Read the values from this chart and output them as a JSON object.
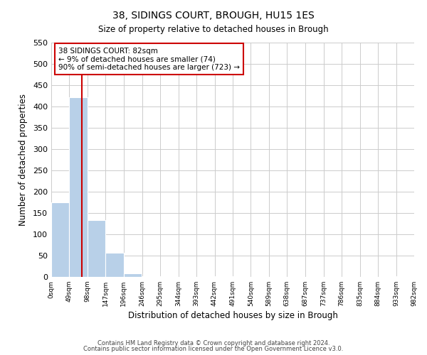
{
  "title": "38, SIDINGS COURT, BROUGH, HU15 1ES",
  "subtitle": "Size of property relative to detached houses in Brough",
  "xlabel": "Distribution of detached houses by size in Brough",
  "ylabel": "Number of detached properties",
  "bin_edges": [
    0,
    49,
    98,
    147,
    196,
    246,
    295,
    344,
    393,
    442,
    491,
    540,
    589,
    638,
    687,
    737,
    786,
    835,
    884,
    933,
    982
  ],
  "bin_labels": [
    "0sqm",
    "49sqm",
    "98sqm",
    "147sqm",
    "196sqm",
    "246sqm",
    "295sqm",
    "344sqm",
    "393sqm",
    "442sqm",
    "491sqm",
    "540sqm",
    "589sqm",
    "638sqm",
    "687sqm",
    "737sqm",
    "786sqm",
    "835sqm",
    "884sqm",
    "933sqm",
    "982sqm"
  ],
  "counts": [
    175,
    422,
    134,
    57,
    8,
    1,
    0,
    0,
    0,
    1,
    0,
    0,
    0,
    0,
    0,
    0,
    0,
    0,
    0,
    1
  ],
  "bar_color": "#b8d0e8",
  "bar_edge_color": "#b8d0e8",
  "property_line_x": 82,
  "property_line_color": "#cc0000",
  "annotation_line1": "38 SIDINGS COURT: 82sqm",
  "annotation_line2": "← 9% of detached houses are smaller (74)",
  "annotation_line3": "90% of semi-detached houses are larger (723) →",
  "annotation_box_color": "#ffffff",
  "annotation_box_edge_color": "#cc0000",
  "ylim": [
    0,
    550
  ],
  "yticks": [
    0,
    50,
    100,
    150,
    200,
    250,
    300,
    350,
    400,
    450,
    500,
    550
  ],
  "footer_line1": "Contains HM Land Registry data © Crown copyright and database right 2024.",
  "footer_line2": "Contains public sector information licensed under the Open Government Licence v3.0.",
  "background_color": "#ffffff",
  "grid_color": "#cccccc",
  "title_fontsize": 10,
  "subtitle_fontsize": 8.5,
  "xlabel_fontsize": 8.5,
  "ylabel_fontsize": 8.5
}
